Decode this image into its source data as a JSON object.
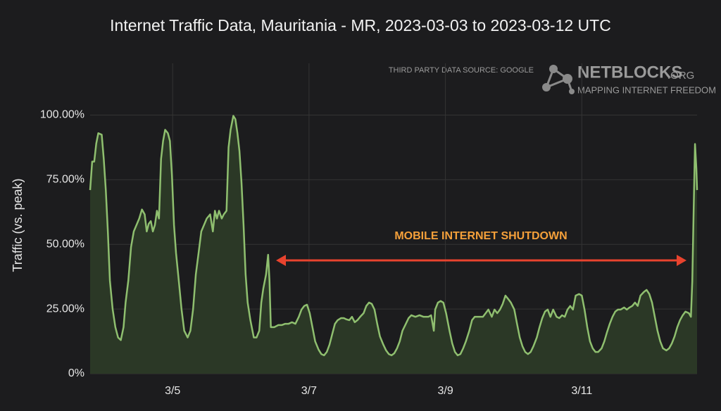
{
  "chart_data": {
    "type": "area",
    "title": "Internet Traffic Data, Mauritania - MR, 2023-03-03 to 2023-03-12 UTC",
    "y_label": "Traffic (vs. peak)",
    "source_note": "THIRD PARTY DATA SOURCE: GOOGLE",
    "logo": {
      "name": "NETBLOCKS",
      "suffix": ".ORG",
      "tagline": "MAPPING INTERNET FREEDOM"
    },
    "annotation": "MOBILE INTERNET SHUTDOWN",
    "color": "#8fbf6f",
    "fill": "#2b3826",
    "annotation_color": "#f5a03a",
    "arrow_color": "#e8432e",
    "grid": true,
    "xlim": [
      3.79,
      12.69
    ],
    "ylim": [
      0,
      120
    ],
    "xticks": [
      {
        "value": 5,
        "label": "3/5"
      },
      {
        "value": 7,
        "label": "3/7"
      },
      {
        "value": 9,
        "label": "3/9"
      },
      {
        "value": 11,
        "label": "3/11"
      }
    ],
    "yticks": [
      {
        "value": 0,
        "label": "0%"
      },
      {
        "value": 25,
        "label": "25.00%"
      },
      {
        "value": 50,
        "label": "50.00%"
      },
      {
        "value": 75,
        "label": "75.00%"
      },
      {
        "value": 100,
        "label": "100.00%"
      }
    ],
    "x": [
      3.79,
      3.82,
      3.85,
      3.88,
      3.91,
      3.96,
      3.99,
      4.02,
      4.05,
      4.08,
      4.12,
      4.16,
      4.2,
      4.24,
      4.28,
      4.31,
      4.35,
      4.39,
      4.43,
      4.47,
      4.51,
      4.55,
      4.59,
      4.62,
      4.65,
      4.68,
      4.71,
      4.74,
      4.77,
      4.8,
      4.83,
      4.86,
      4.89,
      4.93,
      4.96,
      4.99,
      5.02,
      5.05,
      5.09,
      5.13,
      5.17,
      5.22,
      5.26,
      5.3,
      5.34,
      5.38,
      5.42,
      5.46,
      5.5,
      5.55,
      5.59,
      5.62,
      5.65,
      5.68,
      5.72,
      5.75,
      5.79,
      5.82,
      5.85,
      5.89,
      5.92,
      5.95,
      5.98,
      6.01,
      6.04,
      6.07,
      6.1,
      6.14,
      6.19,
      6.23,
      6.27,
      6.3,
      6.33,
      6.37,
      6.4,
      6.42,
      6.44,
      6.49,
      6.55,
      6.6,
      6.65,
      6.7,
      6.75,
      6.8,
      6.85,
      6.89,
      6.93,
      6.97,
      7.01,
      7.05,
      7.09,
      7.14,
      7.18,
      7.22,
      7.26,
      7.3,
      7.34,
      7.38,
      7.42,
      7.47,
      7.51,
      7.55,
      7.59,
      7.63,
      7.67,
      7.71,
      7.75,
      7.8,
      7.84,
      7.88,
      7.92,
      7.96,
      8.0,
      8.04,
      8.09,
      8.13,
      8.17,
      8.21,
      8.25,
      8.29,
      8.33,
      8.37,
      8.42,
      8.46,
      8.5,
      8.56,
      8.62,
      8.68,
      8.75,
      8.79,
      8.83,
      8.85,
      8.89,
      8.93,
      8.97,
      9.01,
      9.06,
      9.1,
      9.14,
      9.18,
      9.22,
      9.26,
      9.3,
      9.35,
      9.39,
      9.43,
      9.49,
      9.55,
      9.59,
      9.63,
      9.68,
      9.72,
      9.76,
      9.8,
      9.84,
      9.88,
      9.92,
      9.96,
      10.01,
      10.05,
      10.09,
      10.13,
      10.17,
      10.21,
      10.25,
      10.29,
      10.34,
      10.38,
      10.42,
      10.46,
      10.5,
      10.54,
      10.58,
      10.63,
      10.67,
      10.71,
      10.75,
      10.79,
      10.83,
      10.87,
      10.91,
      10.96,
      11.0,
      11.04,
      11.08,
      11.12,
      11.16,
      11.2,
      11.24,
      11.29,
      11.33,
      11.37,
      11.41,
      11.45,
      11.49,
      11.53,
      11.57,
      11.62,
      11.66,
      11.7,
      11.74,
      11.78,
      11.82,
      11.86,
      11.91,
      11.95,
      11.99,
      12.03,
      12.07,
      12.11,
      12.15,
      12.19,
      12.24,
      12.28,
      12.32,
      12.36,
      12.4,
      12.44,
      12.48,
      12.52,
      12.57,
      12.6,
      12.62,
      12.64,
      12.66,
      12.68,
      12.69
    ],
    "values": [
      71,
      82,
      82,
      89,
      93,
      92.4,
      83,
      71,
      55,
      36,
      25,
      18,
      14,
      13,
      18,
      27.5,
      36,
      49,
      55,
      57.5,
      60,
      63.5,
      61.6,
      55,
      58,
      59,
      55,
      57.5,
      63,
      60,
      83,
      90,
      94.3,
      93,
      90,
      76.6,
      57.5,
      46.6,
      36,
      25,
      16.6,
      14,
      16.6,
      25,
      38.4,
      46.6,
      55,
      57.5,
      60,
      61.6,
      55,
      63,
      60,
      63,
      60,
      61.6,
      63,
      87.5,
      94.3,
      99.7,
      98.4,
      93,
      86,
      73.8,
      57.5,
      38.4,
      27.5,
      20.7,
      14,
      14,
      16.6,
      27.5,
      33,
      38.4,
      46,
      36,
      18,
      18,
      18.8,
      18.8,
      19.3,
      19.3,
      19.9,
      19.3,
      22,
      24.8,
      26.2,
      26.7,
      23.4,
      18,
      12.5,
      9.3,
      7.6,
      7.1,
      8.4,
      11.2,
      15.3,
      19.3,
      20.7,
      21.5,
      21.5,
      21,
      20.7,
      22,
      19.9,
      20.7,
      22,
      23.4,
      26.2,
      27.5,
      27,
      24.8,
      19.3,
      14.4,
      11.2,
      9,
      7.6,
      7.1,
      7.9,
      9.8,
      12.5,
      16.6,
      19.3,
      21.5,
      22.6,
      22,
      22.6,
      22,
      22,
      22.6,
      16.6,
      24.8,
      27.5,
      28.1,
      27.5,
      23.4,
      16.6,
      11.7,
      8.4,
      7.1,
      7.6,
      9.8,
      12.5,
      16.6,
      20.7,
      22,
      22,
      22,
      23.4,
      24.8,
      22,
      24.8,
      23.4,
      24.8,
      27,
      30.2,
      28.9,
      27.5,
      24.8,
      19.3,
      14,
      10.6,
      8.4,
      7.6,
      8.4,
      10.6,
      14,
      18,
      21.5,
      24,
      24.8,
      22,
      24.8,
      22,
      21.5,
      22.6,
      22,
      24.8,
      26.2,
      24.8,
      30.2,
      30.8,
      30.2,
      24.8,
      18,
      12.5,
      9.8,
      8.4,
      8.4,
      9.8,
      12.5,
      16.1,
      19.3,
      22,
      24,
      24.8,
      24.8,
      25.6,
      24.8,
      25.6,
      26.2,
      27.5,
      26.2,
      30.2,
      31.6,
      32.4,
      30.8,
      27.5,
      22,
      16.6,
      12.5,
      9.8,
      9,
      9.8,
      11.7,
      14.4,
      18,
      20.7,
      22.6,
      24,
      23.4,
      22,
      35.7,
      63,
      88.8,
      79.3,
      71
    ]
  }
}
